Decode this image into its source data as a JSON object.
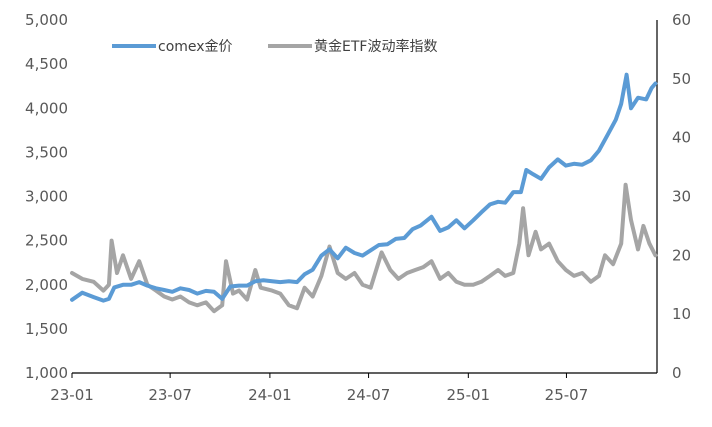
{
  "chart_data": {
    "type": "line",
    "title": "",
    "xlabel": "",
    "ylabel": "",
    "x_tick_labels": [
      "23-01",
      "23-07",
      "24-01",
      "24-07",
      "25-01",
      "25-07"
    ],
    "x_tick_dates": [
      "2023-01",
      "2023-07",
      "2024-01",
      "2024-07",
      "2025-01",
      "2025-07"
    ],
    "y_left": {
      "lim": [
        1000,
        5000
      ],
      "ticks": [
        "1,000",
        "1,500",
        "2,000",
        "2,500",
        "3,000",
        "3,500",
        "4,000",
        "4,500",
        "5,000"
      ],
      "tick_values": [
        1000,
        1500,
        2000,
        2500,
        3000,
        3500,
        4000,
        4500,
        5000
      ]
    },
    "y_right": {
      "lim": [
        0,
        60
      ],
      "ticks": [
        "0",
        "10",
        "20",
        "30",
        "40",
        "50",
        "60"
      ],
      "tick_values": [
        0,
        10,
        20,
        30,
        40,
        50,
        60
      ]
    },
    "legend_position": "top-left",
    "grid": false,
    "series": [
      {
        "name": "comex金价",
        "axis": "left",
        "color": "#5B9BD5",
        "points": [
          [
            "2023-01-01",
            1830
          ],
          [
            "2023-01-20",
            1910
          ],
          [
            "2023-02-10",
            1860
          ],
          [
            "2023-02-28",
            1820
          ],
          [
            "2023-03-10",
            1840
          ],
          [
            "2023-03-20",
            1970
          ],
          [
            "2023-04-05",
            2000
          ],
          [
            "2023-04-20",
            2000
          ],
          [
            "2023-05-05",
            2030
          ],
          [
            "2023-05-20",
            1990
          ],
          [
            "2023-06-05",
            1960
          ],
          [
            "2023-06-20",
            1940
          ],
          [
            "2023-07-05",
            1920
          ],
          [
            "2023-07-20",
            1960
          ],
          [
            "2023-08-05",
            1940
          ],
          [
            "2023-08-20",
            1900
          ],
          [
            "2023-09-05",
            1930
          ],
          [
            "2023-09-20",
            1920
          ],
          [
            "2023-10-05",
            1840
          ],
          [
            "2023-10-20",
            1980
          ],
          [
            "2023-11-05",
            1990
          ],
          [
            "2023-11-20",
            1990
          ],
          [
            "2023-12-05",
            2040
          ],
          [
            "2023-12-20",
            2050
          ],
          [
            "2024-01-05",
            2040
          ],
          [
            "2024-01-20",
            2030
          ],
          [
            "2024-02-05",
            2040
          ],
          [
            "2024-02-20",
            2030
          ],
          [
            "2024-03-05",
            2120
          ],
          [
            "2024-03-20",
            2170
          ],
          [
            "2024-04-05",
            2330
          ],
          [
            "2024-04-20",
            2400
          ],
          [
            "2024-05-05",
            2300
          ],
          [
            "2024-05-20",
            2420
          ],
          [
            "2024-06-05",
            2360
          ],
          [
            "2024-06-20",
            2330
          ],
          [
            "2024-07-05",
            2390
          ],
          [
            "2024-07-20",
            2450
          ],
          [
            "2024-08-05",
            2460
          ],
          [
            "2024-08-20",
            2520
          ],
          [
            "2024-09-05",
            2530
          ],
          [
            "2024-09-20",
            2630
          ],
          [
            "2024-10-05",
            2670
          ],
          [
            "2024-10-25",
            2770
          ],
          [
            "2024-11-10",
            2610
          ],
          [
            "2024-11-25",
            2650
          ],
          [
            "2024-12-10",
            2730
          ],
          [
            "2024-12-25",
            2640
          ],
          [
            "2025-01-10",
            2730
          ],
          [
            "2025-01-25",
            2820
          ],
          [
            "2025-02-10",
            2910
          ],
          [
            "2025-02-25",
            2940
          ],
          [
            "2025-03-10",
            2930
          ],
          [
            "2025-03-25",
            3050
          ],
          [
            "2025-04-08",
            3050
          ],
          [
            "2025-04-18",
            3300
          ],
          [
            "2025-05-01",
            3250
          ],
          [
            "2025-05-15",
            3200
          ],
          [
            "2025-05-30",
            3330
          ],
          [
            "2025-06-15",
            3420
          ],
          [
            "2025-06-30",
            3350
          ],
          [
            "2025-07-15",
            3370
          ],
          [
            "2025-07-30",
            3360
          ],
          [
            "2025-08-15",
            3410
          ],
          [
            "2025-08-30",
            3520
          ],
          [
            "2025-09-15",
            3700
          ],
          [
            "2025-09-30",
            3870
          ],
          [
            "2025-10-10",
            4050
          ],
          [
            "2025-10-20",
            4380
          ],
          [
            "2025-10-28",
            4000
          ],
          [
            "2025-11-10",
            4120
          ],
          [
            "2025-11-25",
            4100
          ],
          [
            "2025-12-05",
            4230
          ],
          [
            "2025-12-12",
            4280
          ]
        ]
      },
      {
        "name": "黄金ETF波动率指数",
        "axis": "right",
        "color": "#A5A5A5",
        "points": [
          [
            "2023-01-01",
            17
          ],
          [
            "2023-01-20",
            16
          ],
          [
            "2023-02-10",
            15.5
          ],
          [
            "2023-02-28",
            14
          ],
          [
            "2023-03-10",
            15
          ],
          [
            "2023-03-15",
            22.5
          ],
          [
            "2023-03-25",
            17
          ],
          [
            "2023-04-05",
            20
          ],
          [
            "2023-04-20",
            16
          ],
          [
            "2023-05-05",
            19
          ],
          [
            "2023-05-20",
            15
          ],
          [
            "2023-06-05",
            14
          ],
          [
            "2023-06-20",
            13
          ],
          [
            "2023-07-05",
            12.5
          ],
          [
            "2023-07-20",
            13
          ],
          [
            "2023-08-05",
            12
          ],
          [
            "2023-08-20",
            11.5
          ],
          [
            "2023-09-05",
            12
          ],
          [
            "2023-09-20",
            10.5
          ],
          [
            "2023-10-05",
            11.5
          ],
          [
            "2023-10-12",
            19
          ],
          [
            "2023-10-25",
            13.5
          ],
          [
            "2023-11-05",
            14
          ],
          [
            "2023-11-20",
            12.5
          ],
          [
            "2023-12-05",
            17.5
          ],
          [
            "2023-12-15",
            14.5
          ],
          [
            "2024-01-05",
            14
          ],
          [
            "2024-01-20",
            13.5
          ],
          [
            "2024-02-05",
            11.5
          ],
          [
            "2024-02-20",
            11
          ],
          [
            "2024-03-05",
            14.5
          ],
          [
            "2024-03-20",
            13
          ],
          [
            "2024-04-05",
            16.5
          ],
          [
            "2024-04-20",
            21.5
          ],
          [
            "2024-05-05",
            17
          ],
          [
            "2024-05-20",
            16
          ],
          [
            "2024-06-05",
            17
          ],
          [
            "2024-06-20",
            15
          ],
          [
            "2024-07-05",
            14.5
          ],
          [
            "2024-07-25",
            20.5
          ],
          [
            "2024-08-10",
            17.5
          ],
          [
            "2024-08-25",
            16
          ],
          [
            "2024-09-10",
            17
          ],
          [
            "2024-09-25",
            17.5
          ],
          [
            "2024-10-10",
            18
          ],
          [
            "2024-10-25",
            19
          ],
          [
            "2024-11-10",
            16
          ],
          [
            "2024-11-25",
            17
          ],
          [
            "2024-12-10",
            15.5
          ],
          [
            "2024-12-25",
            15
          ],
          [
            "2025-01-10",
            15
          ],
          [
            "2025-01-25",
            15.5
          ],
          [
            "2025-02-10",
            16.5
          ],
          [
            "2025-02-25",
            17.5
          ],
          [
            "2025-03-10",
            16.5
          ],
          [
            "2025-03-25",
            17
          ],
          [
            "2025-04-05",
            22
          ],
          [
            "2025-04-12",
            28
          ],
          [
            "2025-04-22",
            20
          ],
          [
            "2025-05-05",
            24
          ],
          [
            "2025-05-15",
            21
          ],
          [
            "2025-05-30",
            22
          ],
          [
            "2025-06-15",
            19
          ],
          [
            "2025-06-30",
            17.5
          ],
          [
            "2025-07-15",
            16.5
          ],
          [
            "2025-07-30",
            17
          ],
          [
            "2025-08-15",
            15.5
          ],
          [
            "2025-08-30",
            16.5
          ],
          [
            "2025-09-10",
            20
          ],
          [
            "2025-09-25",
            18.5
          ],
          [
            "2025-10-10",
            22
          ],
          [
            "2025-10-18",
            32
          ],
          [
            "2025-10-28",
            26
          ],
          [
            "2025-11-10",
            21
          ],
          [
            "2025-11-20",
            25
          ],
          [
            "2025-12-01",
            22
          ],
          [
            "2025-12-12",
            20
          ]
        ]
      }
    ]
  }
}
